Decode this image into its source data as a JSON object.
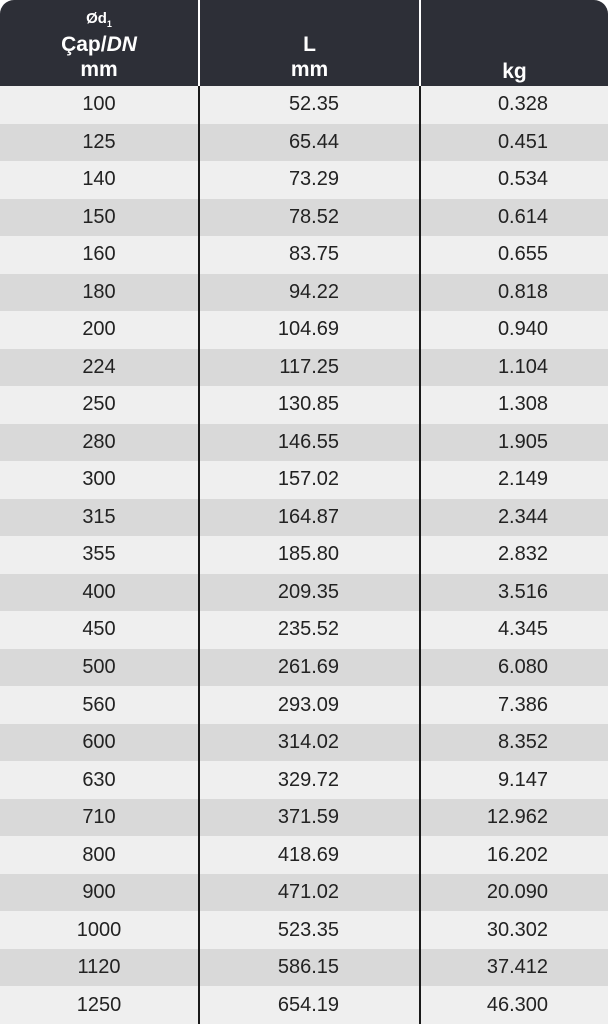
{
  "header": {
    "col1": {
      "line1": "Ød",
      "line1_sub": "1",
      "line2_a": "Çap/",
      "line2_b": "DN",
      "line3": "mm"
    },
    "col2": {
      "line1": "L",
      "line2": "mm"
    },
    "col3": {
      "line1": "kg"
    }
  },
  "colors": {
    "header_bg": "#2d2f37",
    "row_light": "#efefef",
    "row_dark": "#d9d9d9"
  },
  "rows": [
    [
      "100",
      "52.35",
      "0.328"
    ],
    [
      "125",
      "65.44",
      "0.451"
    ],
    [
      "140",
      "73.29",
      "0.534"
    ],
    [
      "150",
      "78.52",
      "0.614"
    ],
    [
      "160",
      "83.75",
      "0.655"
    ],
    [
      "180",
      "94.22",
      "0.818"
    ],
    [
      "200",
      "104.69",
      "0.940"
    ],
    [
      "224",
      "117.25",
      "1.104"
    ],
    [
      "250",
      "130.85",
      "1.308"
    ],
    [
      "280",
      "146.55",
      "1.905"
    ],
    [
      "300",
      "157.02",
      "2.149"
    ],
    [
      "315",
      "164.87",
      "2.344"
    ],
    [
      "355",
      "185.80",
      "2.832"
    ],
    [
      "400",
      "209.35",
      "3.516"
    ],
    [
      "450",
      "235.52",
      "4.345"
    ],
    [
      "500",
      "261.69",
      "6.080"
    ],
    [
      "560",
      "293.09",
      "7.386"
    ],
    [
      "600",
      "314.02",
      "8.352"
    ],
    [
      "630",
      "329.72",
      "9.147"
    ],
    [
      "710",
      "371.59",
      "12.962"
    ],
    [
      "800",
      "418.69",
      "16.202"
    ],
    [
      "900",
      "471.02",
      "20.090"
    ],
    [
      "1000",
      "523.35",
      "30.302"
    ],
    [
      "1120",
      "586.15",
      "37.412"
    ],
    [
      "1250",
      "654.19",
      "46.300"
    ]
  ]
}
